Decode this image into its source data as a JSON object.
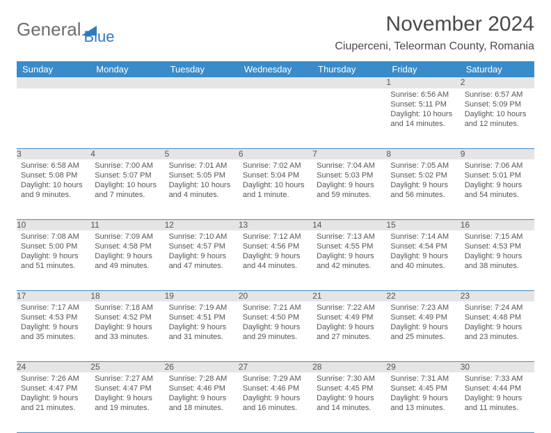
{
  "logo": {
    "general": "General",
    "blue": "Blue"
  },
  "title": "November 2024",
  "location": "Ciuperceni, Teleorman County, Romania",
  "colors": {
    "headerBg": "#3a8bc9",
    "logoBlue": "#2f7ac0",
    "text": "#555"
  },
  "dayHeaders": [
    "Sunday",
    "Monday",
    "Tuesday",
    "Wednesday",
    "Thursday",
    "Friday",
    "Saturday"
  ],
  "weeks": [
    [
      {
        "n": "",
        "sr": "",
        "ss": "",
        "dl": ""
      },
      {
        "n": "",
        "sr": "",
        "ss": "",
        "dl": ""
      },
      {
        "n": "",
        "sr": "",
        "ss": "",
        "dl": ""
      },
      {
        "n": "",
        "sr": "",
        "ss": "",
        "dl": ""
      },
      {
        "n": "",
        "sr": "",
        "ss": "",
        "dl": ""
      },
      {
        "n": "1",
        "sr": "Sunrise: 6:56 AM",
        "ss": "Sunset: 5:11 PM",
        "dl": "Daylight: 10 hours and 14 minutes."
      },
      {
        "n": "2",
        "sr": "Sunrise: 6:57 AM",
        "ss": "Sunset: 5:09 PM",
        "dl": "Daylight: 10 hours and 12 minutes."
      }
    ],
    [
      {
        "n": "3",
        "sr": "Sunrise: 6:58 AM",
        "ss": "Sunset: 5:08 PM",
        "dl": "Daylight: 10 hours and 9 minutes."
      },
      {
        "n": "4",
        "sr": "Sunrise: 7:00 AM",
        "ss": "Sunset: 5:07 PM",
        "dl": "Daylight: 10 hours and 7 minutes."
      },
      {
        "n": "5",
        "sr": "Sunrise: 7:01 AM",
        "ss": "Sunset: 5:05 PM",
        "dl": "Daylight: 10 hours and 4 minutes."
      },
      {
        "n": "6",
        "sr": "Sunrise: 7:02 AM",
        "ss": "Sunset: 5:04 PM",
        "dl": "Daylight: 10 hours and 1 minute."
      },
      {
        "n": "7",
        "sr": "Sunrise: 7:04 AM",
        "ss": "Sunset: 5:03 PM",
        "dl": "Daylight: 9 hours and 59 minutes."
      },
      {
        "n": "8",
        "sr": "Sunrise: 7:05 AM",
        "ss": "Sunset: 5:02 PM",
        "dl": "Daylight: 9 hours and 56 minutes."
      },
      {
        "n": "9",
        "sr": "Sunrise: 7:06 AM",
        "ss": "Sunset: 5:01 PM",
        "dl": "Daylight: 9 hours and 54 minutes."
      }
    ],
    [
      {
        "n": "10",
        "sr": "Sunrise: 7:08 AM",
        "ss": "Sunset: 5:00 PM",
        "dl": "Daylight: 9 hours and 51 minutes."
      },
      {
        "n": "11",
        "sr": "Sunrise: 7:09 AM",
        "ss": "Sunset: 4:58 PM",
        "dl": "Daylight: 9 hours and 49 minutes."
      },
      {
        "n": "12",
        "sr": "Sunrise: 7:10 AM",
        "ss": "Sunset: 4:57 PM",
        "dl": "Daylight: 9 hours and 47 minutes."
      },
      {
        "n": "13",
        "sr": "Sunrise: 7:12 AM",
        "ss": "Sunset: 4:56 PM",
        "dl": "Daylight: 9 hours and 44 minutes."
      },
      {
        "n": "14",
        "sr": "Sunrise: 7:13 AM",
        "ss": "Sunset: 4:55 PM",
        "dl": "Daylight: 9 hours and 42 minutes."
      },
      {
        "n": "15",
        "sr": "Sunrise: 7:14 AM",
        "ss": "Sunset: 4:54 PM",
        "dl": "Daylight: 9 hours and 40 minutes."
      },
      {
        "n": "16",
        "sr": "Sunrise: 7:15 AM",
        "ss": "Sunset: 4:53 PM",
        "dl": "Daylight: 9 hours and 38 minutes."
      }
    ],
    [
      {
        "n": "17",
        "sr": "Sunrise: 7:17 AM",
        "ss": "Sunset: 4:53 PM",
        "dl": "Daylight: 9 hours and 35 minutes."
      },
      {
        "n": "18",
        "sr": "Sunrise: 7:18 AM",
        "ss": "Sunset: 4:52 PM",
        "dl": "Daylight: 9 hours and 33 minutes."
      },
      {
        "n": "19",
        "sr": "Sunrise: 7:19 AM",
        "ss": "Sunset: 4:51 PM",
        "dl": "Daylight: 9 hours and 31 minutes."
      },
      {
        "n": "20",
        "sr": "Sunrise: 7:21 AM",
        "ss": "Sunset: 4:50 PM",
        "dl": "Daylight: 9 hours and 29 minutes."
      },
      {
        "n": "21",
        "sr": "Sunrise: 7:22 AM",
        "ss": "Sunset: 4:49 PM",
        "dl": "Daylight: 9 hours and 27 minutes."
      },
      {
        "n": "22",
        "sr": "Sunrise: 7:23 AM",
        "ss": "Sunset: 4:49 PM",
        "dl": "Daylight: 9 hours and 25 minutes."
      },
      {
        "n": "23",
        "sr": "Sunrise: 7:24 AM",
        "ss": "Sunset: 4:48 PM",
        "dl": "Daylight: 9 hours and 23 minutes."
      }
    ],
    [
      {
        "n": "24",
        "sr": "Sunrise: 7:26 AM",
        "ss": "Sunset: 4:47 PM",
        "dl": "Daylight: 9 hours and 21 minutes."
      },
      {
        "n": "25",
        "sr": "Sunrise: 7:27 AM",
        "ss": "Sunset: 4:47 PM",
        "dl": "Daylight: 9 hours and 19 minutes."
      },
      {
        "n": "26",
        "sr": "Sunrise: 7:28 AM",
        "ss": "Sunset: 4:46 PM",
        "dl": "Daylight: 9 hours and 18 minutes."
      },
      {
        "n": "27",
        "sr": "Sunrise: 7:29 AM",
        "ss": "Sunset: 4:46 PM",
        "dl": "Daylight: 9 hours and 16 minutes."
      },
      {
        "n": "28",
        "sr": "Sunrise: 7:30 AM",
        "ss": "Sunset: 4:45 PM",
        "dl": "Daylight: 9 hours and 14 minutes."
      },
      {
        "n": "29",
        "sr": "Sunrise: 7:31 AM",
        "ss": "Sunset: 4:45 PM",
        "dl": "Daylight: 9 hours and 13 minutes."
      },
      {
        "n": "30",
        "sr": "Sunrise: 7:33 AM",
        "ss": "Sunset: 4:44 PM",
        "dl": "Daylight: 9 hours and 11 minutes."
      }
    ]
  ]
}
